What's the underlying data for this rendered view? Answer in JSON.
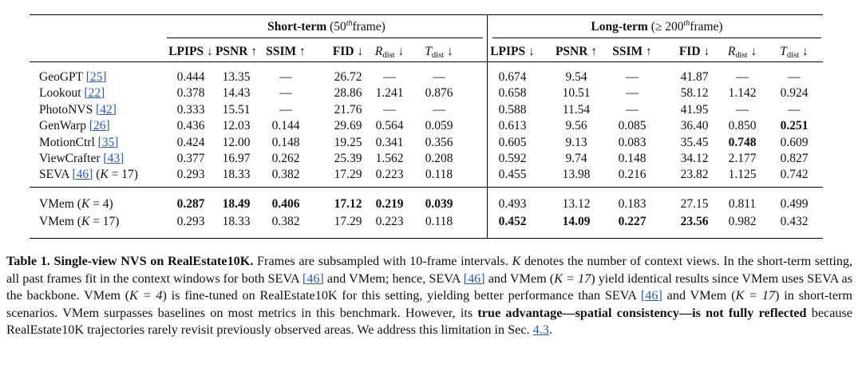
{
  "table": {
    "group_short": {
      "title": "Short-term",
      "detail_pre": "(50",
      "detail_sup": "th",
      "detail_post": "frame)"
    },
    "group_long": {
      "title": "Long-term",
      "detail_pre": "(≥ 200",
      "detail_sup": "th",
      "detail_post": "frame)"
    },
    "metrics_short": [
      {
        "label": "LPIPS",
        "arrow": "↓"
      },
      {
        "label": "PSNR",
        "arrow": "↑"
      },
      {
        "label": "SSIM",
        "arrow": "↑"
      },
      {
        "label": "FID",
        "arrow": "↓"
      },
      {
        "label": "R",
        "sub": "dist",
        "arrow": "↓"
      },
      {
        "label": "T",
        "sub": "dist",
        "arrow": "↓"
      }
    ],
    "metrics_long": [
      {
        "label": "LPIPS",
        "arrow": "↓"
      },
      {
        "label": "PSNR",
        "arrow": "↑"
      },
      {
        "label": "SSIM",
        "arrow": "↑"
      },
      {
        "label": "FID",
        "arrow": "↓"
      },
      {
        "label": "R",
        "sub": "dist",
        "arrow": "↓"
      },
      {
        "label": "T",
        "sub": "dist",
        "arrow": "↓"
      }
    ],
    "rows": [
      {
        "method": "GeoGPT",
        "ref": "[25]",
        "suffix": "",
        "values": [
          "0.444",
          "13.35",
          "—",
          "26.72",
          "—",
          "—",
          "0.674",
          "9.54",
          "—",
          "41.87",
          "—",
          "—"
        ],
        "bold": []
      },
      {
        "method": "Lookout",
        "ref": "[22]",
        "suffix": "",
        "values": [
          "0.378",
          "14.43",
          "—",
          "28.86",
          "1.241",
          "0.876",
          "0.658",
          "10.51",
          "—",
          "58.12",
          "1.142",
          "0.924"
        ],
        "bold": []
      },
      {
        "method": "PhotoNVS",
        "ref": "[42]",
        "suffix": "",
        "values": [
          "0.333",
          "15.51",
          "—",
          "21.76",
          "—",
          "—",
          "0.588",
          "11.54",
          "—",
          "41.95",
          "—",
          "—"
        ],
        "bold": []
      },
      {
        "method": "GenWarp",
        "ref": "[26]",
        "suffix": "",
        "values": [
          "0.436",
          "12.03",
          "0.144",
          "29.69",
          "0.564",
          "0.059",
          "0.613",
          "9.56",
          "0.085",
          "36.40",
          "0.850",
          "0.251"
        ],
        "bold": [
          11
        ]
      },
      {
        "method": "MotionCtrl",
        "ref": "[35]",
        "suffix": "",
        "values": [
          "0.424",
          "12.00",
          "0.148",
          "19.25",
          "0.341",
          "0.356",
          "0.605",
          "9.13",
          "0.083",
          "35.45",
          "0.748",
          "0.609"
        ],
        "bold": [
          10
        ]
      },
      {
        "method": "ViewCrafter",
        "ref": "[43]",
        "suffix": "",
        "values": [
          "0.377",
          "16.97",
          "0.262",
          "25.39",
          "1.562",
          "0.208",
          "0.592",
          "9.74",
          "0.148",
          "34.12",
          "2.177",
          "0.827"
        ],
        "bold": []
      },
      {
        "method": "SEVA",
        "ref": "[46]",
        "suffix": "(K = 17)",
        "values": [
          "0.293",
          "18.33",
          "0.382",
          "17.29",
          "0.223",
          "0.118",
          "0.455",
          "13.98",
          "0.216",
          "23.82",
          "1.125",
          "0.742"
        ],
        "bold": []
      },
      {
        "method": "VMem",
        "ref": "",
        "suffix": "(K = 4)",
        "values": [
          "0.287",
          "18.49",
          "0.406",
          "17.12",
          "0.219",
          "0.039",
          "0.493",
          "13.12",
          "0.183",
          "27.15",
          "0.811",
          "0.499"
        ],
        "bold": [
          0,
          1,
          2,
          3,
          4,
          5
        ]
      },
      {
        "method": "VMem",
        "ref": "",
        "suffix": "(K = 17)",
        "values": [
          "0.293",
          "18.33",
          "0.382",
          "17.29",
          "0.223",
          "0.118",
          "0.452",
          "14.09",
          "0.227",
          "23.56",
          "0.982",
          "0.432"
        ],
        "bold": [
          6,
          7,
          8,
          9
        ]
      }
    ]
  },
  "caption": {
    "label": "Table 1.",
    "title": "Single-view NVS on RealEstate10K.",
    "s1": "Frames are subsampled with 10-frame intervals.",
    "s2_var": "K",
    "s2": "denotes the number of context views. In the short-term setting, all past frames fit in the context windows for both SEVA",
    "ref46": "[46]",
    "s3": "and VMem; hence, SEVA",
    "s4": "and VMem (",
    "k17": "K = 17",
    "s5": ") yield identical results since VMem uses SEVA as the backbone. VMem (",
    "k4": "K = 4",
    "s6": ") is fine-tuned on RealEstate10K for this setting, yielding better performance than SEVA",
    "s7": "and VMem (",
    "s8": ") in short-term scenarios. VMem surpasses baselines on most metrics in this benchmark. However, its",
    "emph": "true advantage—spatial consistency—is not fully reflected",
    "s9": "because RealEstate10K trajectories rarely revisit previously observed areas. We address this limitation in Sec.",
    "sec": "4.3",
    "s10": "."
  }
}
